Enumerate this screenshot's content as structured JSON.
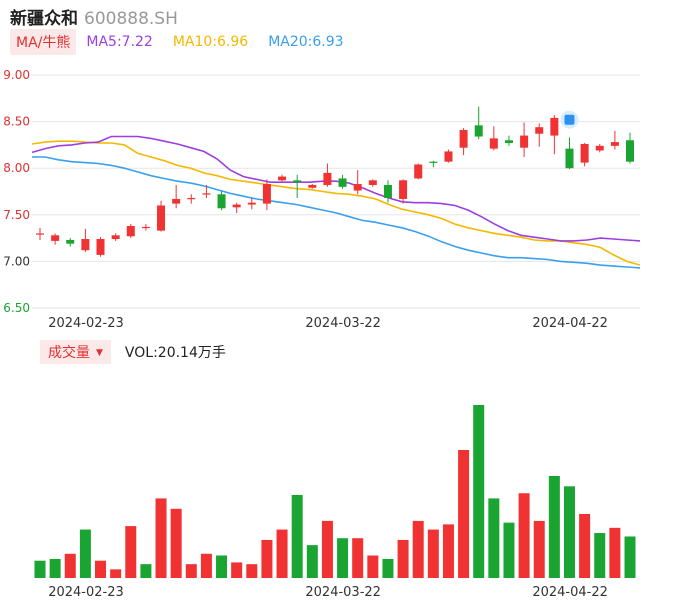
{
  "header": {
    "name": "新疆众和",
    "code": "600888.SH"
  },
  "ma_legend": {
    "tag": "MA/牛熊",
    "items": [
      {
        "label": "MA5:7.22",
        "color": "#9b3fe0"
      },
      {
        "label": "MA10:6.96",
        "color": "#f5b800"
      },
      {
        "label": "MA20:6.93",
        "color": "#3a9ff0"
      }
    ]
  },
  "volume_legend": {
    "tag": "成交量",
    "caret": "▼",
    "text": "VOL:20.14万手"
  },
  "colors": {
    "up": "#f03232",
    "down": "#1aa431",
    "grid": "#e6e6e6"
  },
  "chart_data": [
    {
      "type": "candlestick",
      "y_ticks": [
        "9.00",
        "8.50",
        "8.00",
        "7.50",
        "7.00",
        "6.50"
      ],
      "y_tick_values": [
        9.0,
        8.5,
        8.0,
        7.5,
        7.0,
        6.5
      ],
      "y_tick_colors": [
        "#e03131",
        "#e03131",
        "#e03131",
        "#e03131",
        "#333333",
        "#1aa431"
      ],
      "ylim": [
        6.5,
        9.0
      ],
      "x_labels": [
        "2024-02-23",
        "2024-03-22",
        "2024-04-22"
      ],
      "x_label_index": [
        0,
        17,
        32
      ],
      "candles": [
        [
          7.3,
          7.3,
          7.36,
          7.23
        ],
        [
          7.22,
          7.28,
          7.3,
          7.18
        ],
        [
          7.23,
          7.19,
          7.25,
          7.16
        ],
        [
          7.12,
          7.24,
          7.35,
          7.1
        ],
        [
          7.07,
          7.24,
          7.26,
          7.05
        ],
        [
          7.24,
          7.28,
          7.3,
          7.22
        ],
        [
          7.27,
          7.38,
          7.4,
          7.25
        ],
        [
          7.37,
          7.37,
          7.4,
          7.33
        ],
        [
          7.33,
          7.6,
          7.65,
          7.32
        ],
        [
          7.62,
          7.67,
          7.82,
          7.57
        ],
        [
          7.68,
          7.68,
          7.72,
          7.62
        ],
        [
          7.72,
          7.73,
          7.82,
          7.68
        ],
        [
          7.72,
          7.57,
          7.75,
          7.55
        ],
        [
          7.58,
          7.61,
          7.63,
          7.52
        ],
        [
          7.61,
          7.63,
          7.68,
          7.56
        ],
        [
          7.62,
          7.83,
          7.88,
          7.55
        ],
        [
          7.87,
          7.91,
          7.93,
          7.86
        ],
        [
          7.87,
          7.85,
          7.93,
          7.68
        ],
        [
          7.79,
          7.82,
          7.83,
          7.78
        ],
        [
          7.82,
          7.95,
          8.05,
          7.8
        ],
        [
          7.89,
          7.8,
          7.93,
          7.78
        ],
        [
          7.76,
          7.83,
          7.98,
          7.72
        ],
        [
          7.82,
          7.87,
          7.88,
          7.8
        ],
        [
          7.82,
          7.68,
          7.87,
          7.63
        ],
        [
          7.67,
          7.87,
          7.88,
          7.62
        ],
        [
          7.89,
          8.04,
          8.05,
          7.88
        ],
        [
          8.07,
          8.06,
          8.08,
          8.01
        ],
        [
          8.07,
          8.18,
          8.2,
          8.06
        ],
        [
          8.22,
          8.41,
          8.43,
          8.14
        ],
        [
          8.46,
          8.34,
          8.66,
          8.31
        ],
        [
          8.21,
          8.32,
          8.45,
          8.19
        ],
        [
          8.3,
          8.27,
          8.35,
          8.24
        ],
        [
          8.22,
          8.35,
          8.49,
          8.12
        ],
        [
          8.37,
          8.44,
          8.48,
          8.23
        ],
        [
          8.35,
          8.54,
          8.57,
          8.15
        ],
        [
          8.21,
          8.0,
          8.33,
          7.99
        ],
        [
          8.06,
          8.26,
          8.27,
          8.02
        ],
        [
          8.19,
          8.24,
          8.26,
          8.17
        ],
        [
          8.24,
          8.28,
          8.4,
          8.2
        ],
        [
          8.3,
          8.07,
          8.38,
          8.05
        ]
      ],
      "ma5": [
        8.17,
        8.21,
        8.24,
        8.25,
        8.27,
        8.28,
        8.34,
        8.34,
        8.34,
        8.32,
        8.29,
        8.26,
        8.22,
        8.18,
        8.1,
        7.98,
        7.91,
        7.88,
        7.85,
        7.85,
        7.85,
        7.85,
        7.86,
        7.86,
        7.84,
        7.79,
        7.73,
        7.68,
        7.64,
        7.63,
        7.63,
        7.62,
        7.6,
        7.55,
        7.48,
        7.4,
        7.33,
        7.28,
        7.26,
        7.24,
        7.22,
        7.22,
        7.23,
        7.25,
        7.24,
        7.23,
        7.22
      ],
      "ma10": [
        8.26,
        8.28,
        8.29,
        8.29,
        8.28,
        8.27,
        8.27,
        8.25,
        8.16,
        8.12,
        8.08,
        8.03,
        8.0,
        7.95,
        7.92,
        7.88,
        7.86,
        7.84,
        7.82,
        7.8,
        7.78,
        7.77,
        7.75,
        7.73,
        7.72,
        7.7,
        7.67,
        7.61,
        7.56,
        7.53,
        7.5,
        7.46,
        7.4,
        7.36,
        7.33,
        7.3,
        7.28,
        7.26,
        7.23,
        7.22,
        7.22,
        7.2,
        7.18,
        7.15,
        7.07,
        7.0,
        6.96
      ],
      "ma20": [
        8.12,
        8.12,
        8.09,
        8.07,
        8.06,
        8.05,
        8.03,
        8.0,
        7.96,
        7.92,
        7.89,
        7.86,
        7.84,
        7.81,
        7.77,
        7.73,
        7.7,
        7.67,
        7.65,
        7.63,
        7.61,
        7.58,
        7.55,
        7.52,
        7.48,
        7.44,
        7.42,
        7.39,
        7.36,
        7.32,
        7.27,
        7.21,
        7.16,
        7.12,
        7.09,
        7.06,
        7.04,
        7.04,
        7.03,
        7.02,
        7.0,
        6.99,
        6.98,
        6.96,
        6.95,
        6.94,
        6.93
      ]
    },
    {
      "type": "bar",
      "name": "成交量",
      "unit": "万手",
      "ylim": [
        0,
        100
      ],
      "x_labels": [
        "2024-02-23",
        "2024-03-22",
        "2024-04-22"
      ],
      "values": [
        10,
        11,
        14,
        28,
        10,
        5,
        30,
        8,
        46,
        40,
        8,
        14,
        13,
        9,
        8,
        22,
        28,
        48,
        19,
        33,
        23,
        23,
        13,
        11,
        22,
        33,
        28,
        31,
        74,
        100,
        46,
        32,
        49,
        33,
        59,
        53,
        37,
        26,
        29,
        24
      ],
      "up": [
        false,
        false,
        true,
        false,
        true,
        true,
        true,
        false,
        true,
        true,
        true,
        true,
        false,
        true,
        true,
        true,
        true,
        false,
        false,
        true,
        false,
        true,
        true,
        false,
        true,
        true,
        true,
        true,
        true,
        false,
        false,
        false,
        true,
        true,
        false,
        false,
        true,
        false,
        true,
        false
      ]
    }
  ]
}
